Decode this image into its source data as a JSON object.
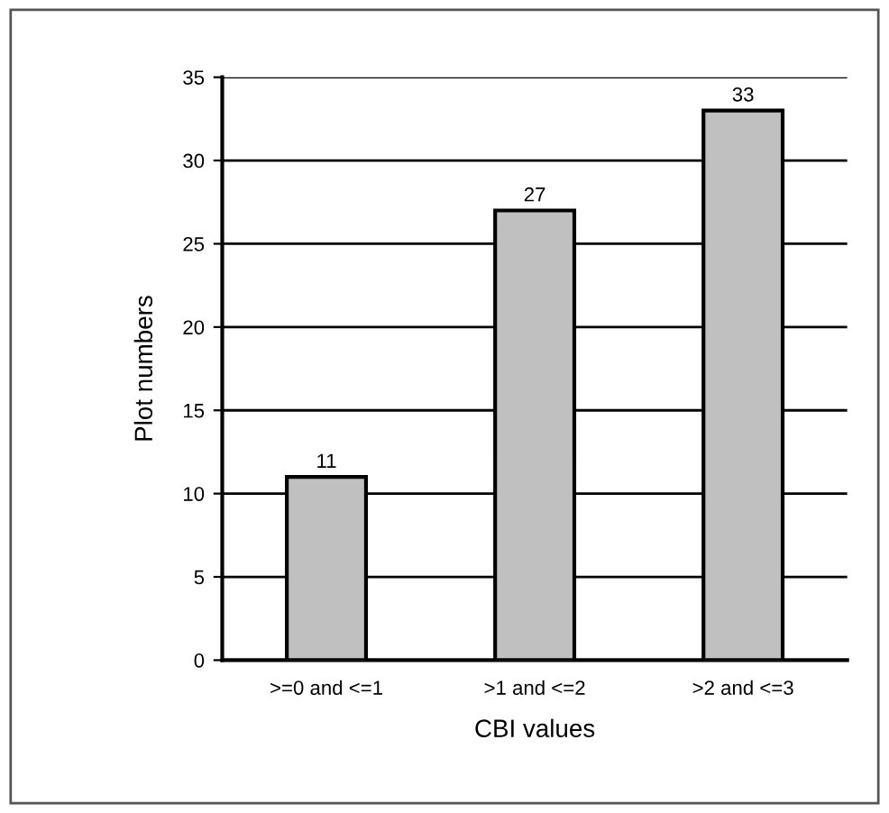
{
  "chart_data": {
    "type": "bar",
    "xlabel": "CBI values",
    "ylabel": "Plot numbers",
    "categories": [
      ">=0 and <=1",
      ">1 and <=2",
      ">2 and <=3"
    ],
    "values": [
      11,
      27,
      33
    ],
    "color": "#c0c0c0",
    "ylim": [
      0,
      35
    ],
    "yticks": [
      0,
      5,
      10,
      15,
      20,
      25,
      30,
      35
    ],
    "grid": "y",
    "data_labels": true
  }
}
